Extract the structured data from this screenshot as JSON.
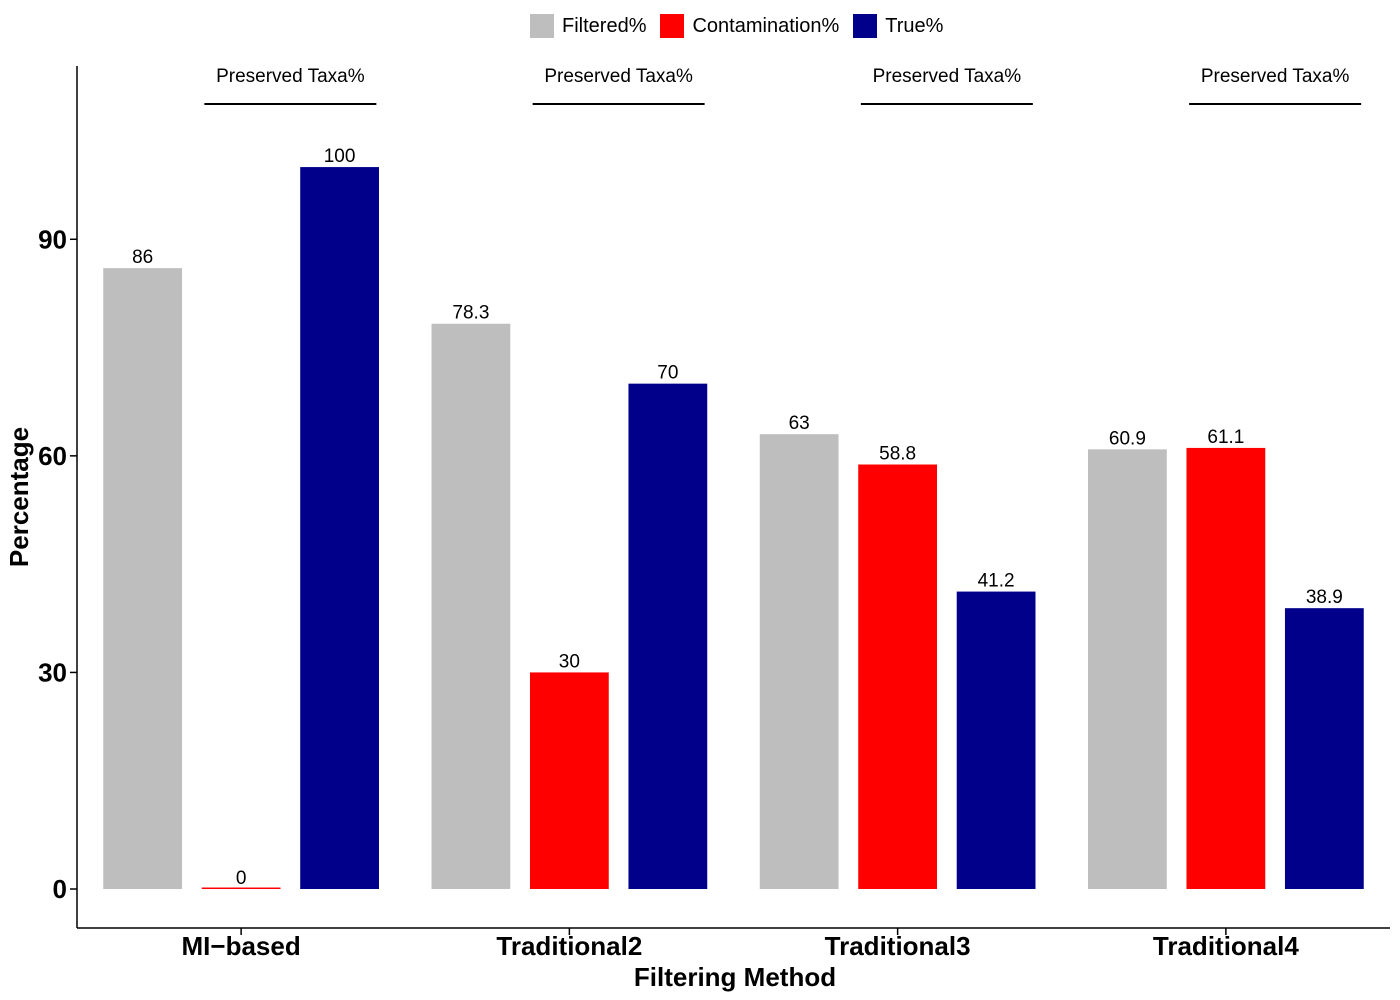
{
  "chart_data": {
    "type": "bar",
    "xlabel": "Filtering Method",
    "ylabel": "Percentage",
    "categories": [
      "MI−based",
      "Traditional2",
      "Traditional3",
      "Traditional4"
    ],
    "series": [
      {
        "name": "Filtered%",
        "color": "#bebebe",
        "values": [
          86,
          78.3,
          63,
          60.9
        ],
        "labels": [
          "86",
          "78.3",
          "63",
          "60.9"
        ]
      },
      {
        "name": "Contamination%",
        "color": "#ff0000",
        "values": [
          0,
          30,
          58.8,
          61.1
        ],
        "labels": [
          "0",
          "30",
          "58.8",
          "61.1"
        ]
      },
      {
        "name": "True%",
        "color": "#00008b",
        "values": [
          100,
          70,
          41.2,
          38.9
        ],
        "labels": [
          "100",
          "70",
          "41.2",
          "38.9"
        ]
      }
    ],
    "yticks": [
      0,
      30,
      60,
      90
    ],
    "ylim": [
      -5.4,
      114
    ],
    "annotation": "Preserved Taxa%",
    "legend_position": "top"
  }
}
